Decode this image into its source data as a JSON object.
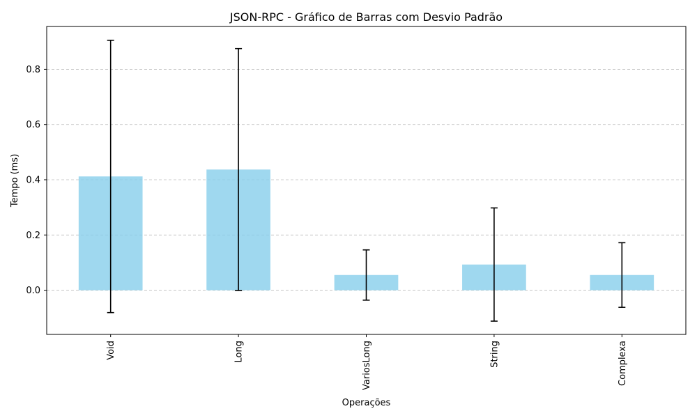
{
  "chart_data": {
    "type": "bar",
    "title": "JSON-RPC - Gráfico de Barras com Desvio Padrão",
    "xlabel": "Operações",
    "ylabel": "Tempo (ms)",
    "categories": [
      "Void",
      "Long",
      "VariosLong",
      "String",
      "Complexa"
    ],
    "values": [
      0.412,
      0.437,
      0.055,
      0.093,
      0.055
    ],
    "error": [
      0.493,
      0.438,
      0.091,
      0.205,
      0.117
    ],
    "ylim": [
      -0.16,
      0.955
    ],
    "yticks": [
      0.0,
      0.2,
      0.4,
      0.6,
      0.8
    ],
    "ytick_labels": [
      "0.0",
      "0.2",
      "0.4",
      "0.6",
      "0.8"
    ],
    "grid": "y-dashed",
    "bar_color": "#87CEEB",
    "bar_alpha": 0.8,
    "error_color": "#000000",
    "tick_rotation_x": 90
  }
}
